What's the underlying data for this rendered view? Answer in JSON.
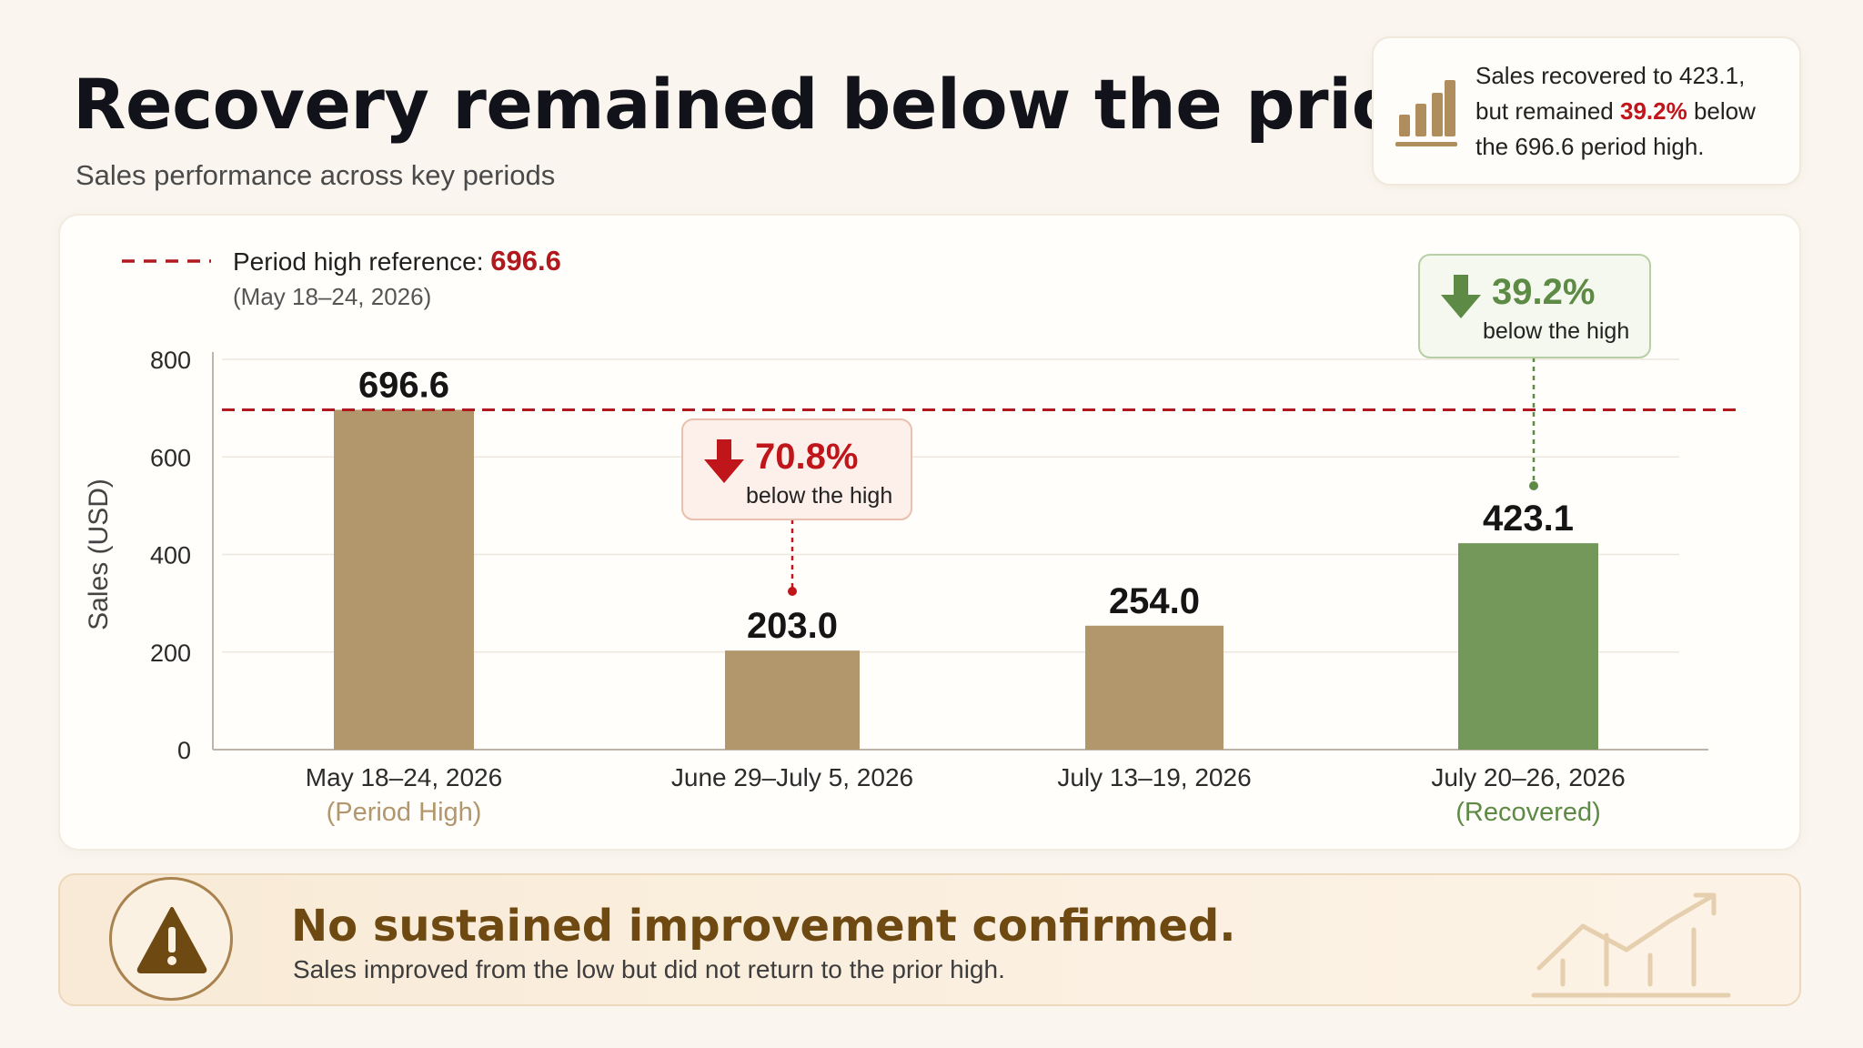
{
  "header": {
    "title": "Recovery remained below the prior high",
    "subtitle": "Sales performance across key periods"
  },
  "insight": {
    "icon": "bar-chart-icon",
    "line1": "Sales recovered to 423.1,",
    "line2_pre": "but remained ",
    "line2_pct": "39.2%",
    "line2_post": " below",
    "line3": "the 696.6 period high."
  },
  "chart_data": {
    "type": "bar",
    "ylabel": "Sales (USD)",
    "xlabel": "",
    "ylim": [
      0,
      800
    ],
    "yticks": [
      0,
      200,
      400,
      600,
      800
    ],
    "grid": true,
    "categories": [
      "May 18–24, 2026",
      "June 29–July 5, 2026",
      "July 13–19, 2026",
      "July 20–26, 2026"
    ],
    "category_notes": [
      "(Period High)",
      "",
      "",
      "(Recovered)"
    ],
    "values": [
      696.6,
      203.0,
      254.0,
      423.1
    ],
    "value_labels": [
      "696.6",
      "203.0",
      "254.0",
      "423.1"
    ],
    "bar_colors": [
      "#b2966c",
      "#b2966c",
      "#b2966c",
      "#73985a"
    ],
    "note_colors": [
      "#b2966c",
      "",
      "",
      "#5d8a45"
    ],
    "reference_line": {
      "value": 696.6,
      "label": "Period high reference: ",
      "value_label": "696.6",
      "period": "(May 18–24, 2026)",
      "color": "#b0191e"
    },
    "annotations": [
      {
        "category_index": 1,
        "pct": "70.8%",
        "text": "below the high",
        "direction": "down",
        "color": "#c0161b",
        "bg": "#fdf0ea",
        "border": "#e9bfae"
      },
      {
        "category_index": 3,
        "pct": "39.2%",
        "text": "below the high",
        "direction": "down",
        "color": "#5d8a45",
        "bg": "#f4f8ee",
        "border": "#b7cfa5"
      }
    ]
  },
  "banner": {
    "icon": "warning-icon",
    "title": "No sustained improvement confirmed.",
    "subtitle": "Sales improved from the low but did not return to the prior high.",
    "decoration_icon": "trend-chart-icon"
  }
}
